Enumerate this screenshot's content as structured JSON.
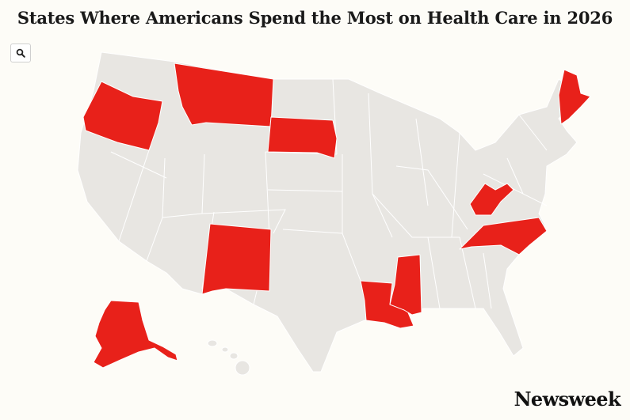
{
  "title": "States Where Americans Spend the Most on Health Care in 2026",
  "controls": {
    "search_icon": "search-icon"
  },
  "colors": {
    "highlight": "#e8211a",
    "base": "#e8e6e2",
    "border": "#ffffff",
    "background": "#fdfcf7"
  },
  "map": {
    "highlighted_states": [
      "Alaska",
      "Oregon",
      "Montana",
      "South Dakota",
      "New Mexico",
      "Louisiana",
      "Mississippi",
      "West Virginia",
      "North Carolina",
      "Maine"
    ]
  },
  "brand": {
    "logo": "Newsweek"
  }
}
